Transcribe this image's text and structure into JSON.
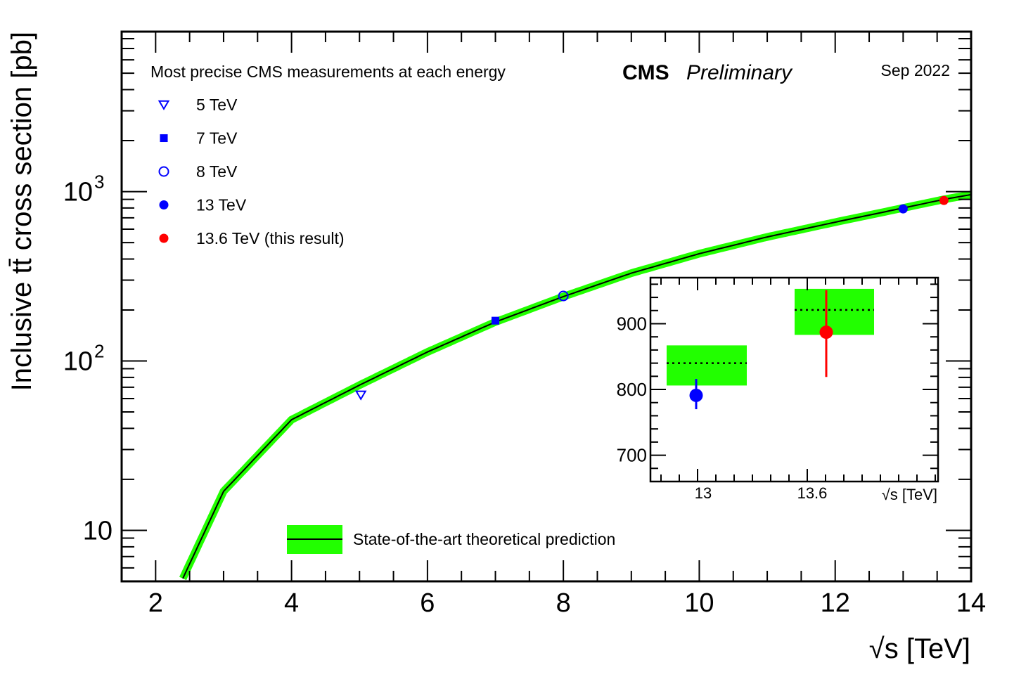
{
  "chart_data": {
    "type": "scatter",
    "xlabel": "√s [TeV]",
    "ylabel": "Inclusive tt̄ cross section [pb]",
    "xlim": [
      1.5,
      14
    ],
    "ylim": [
      5,
      8800
    ],
    "y_scale": "log",
    "x_ticks": [
      "2",
      "4",
      "6",
      "8",
      "10",
      "12",
      "14"
    ],
    "y_ticks": [
      {
        "value": 10,
        "base": "10",
        "exp": ""
      },
      {
        "value": 100,
        "base": "10",
        "exp": "2"
      },
      {
        "value": 1000,
        "base": "10",
        "exp": "3"
      }
    ],
    "legend_title": "Most precise CMS measurements at each energy",
    "experiment": "CMS",
    "status": "Preliminary",
    "date": "Sep 2022",
    "series": [
      {
        "name": "5 TeV",
        "marker": "open-triangle-down",
        "color": "#0000ff",
        "x": 5.02,
        "y": 63
      },
      {
        "name": "7 TeV",
        "marker": "filled-square",
        "color": "#0000ff",
        "x": 7,
        "y": 173
      },
      {
        "name": "8 TeV",
        "marker": "open-circle",
        "color": "#0000ff",
        "x": 8,
        "y": 242
      },
      {
        "name": "13 TeV",
        "marker": "filled-circle",
        "color": "#0000ff",
        "x": 13,
        "y": 791
      },
      {
        "name": "13.6 TeV (this result)",
        "marker": "filled-circle",
        "color": "#ff0000",
        "x": 13.6,
        "y": 887
      }
    ],
    "theory": {
      "name": "State-of-the-art theoretical prediction",
      "line_color": "#000000",
      "band_color": "#22ff00",
      "x": [
        2.4,
        3,
        4,
        5,
        6,
        7,
        8,
        9,
        10,
        11,
        12,
        13,
        13.6,
        14
      ],
      "y": [
        5.2,
        17,
        45,
        72,
        113,
        170,
        240,
        330,
        430,
        540,
        660,
        800,
        900,
        960
      ]
    },
    "inset": {
      "xlabel": "√s [TeV]",
      "x_ticks": [
        "13",
        "13.6"
      ],
      "y_ticks": [
        "700",
        "800",
        "900"
      ],
      "ylim": [
        660,
        970
      ],
      "points": [
        {
          "label": "13",
          "y": 791,
          "err_lo": 21,
          "err_hi": 25,
          "color": "#0000ff",
          "theory": 840,
          "band_lo": 806,
          "band_hi": 867
        },
        {
          "label": "13.6",
          "y": 887,
          "err_lo": 68,
          "err_hi": 64,
          "color": "#ff0000",
          "theory": 921,
          "band_lo": 883,
          "band_hi": 953
        }
      ]
    }
  }
}
